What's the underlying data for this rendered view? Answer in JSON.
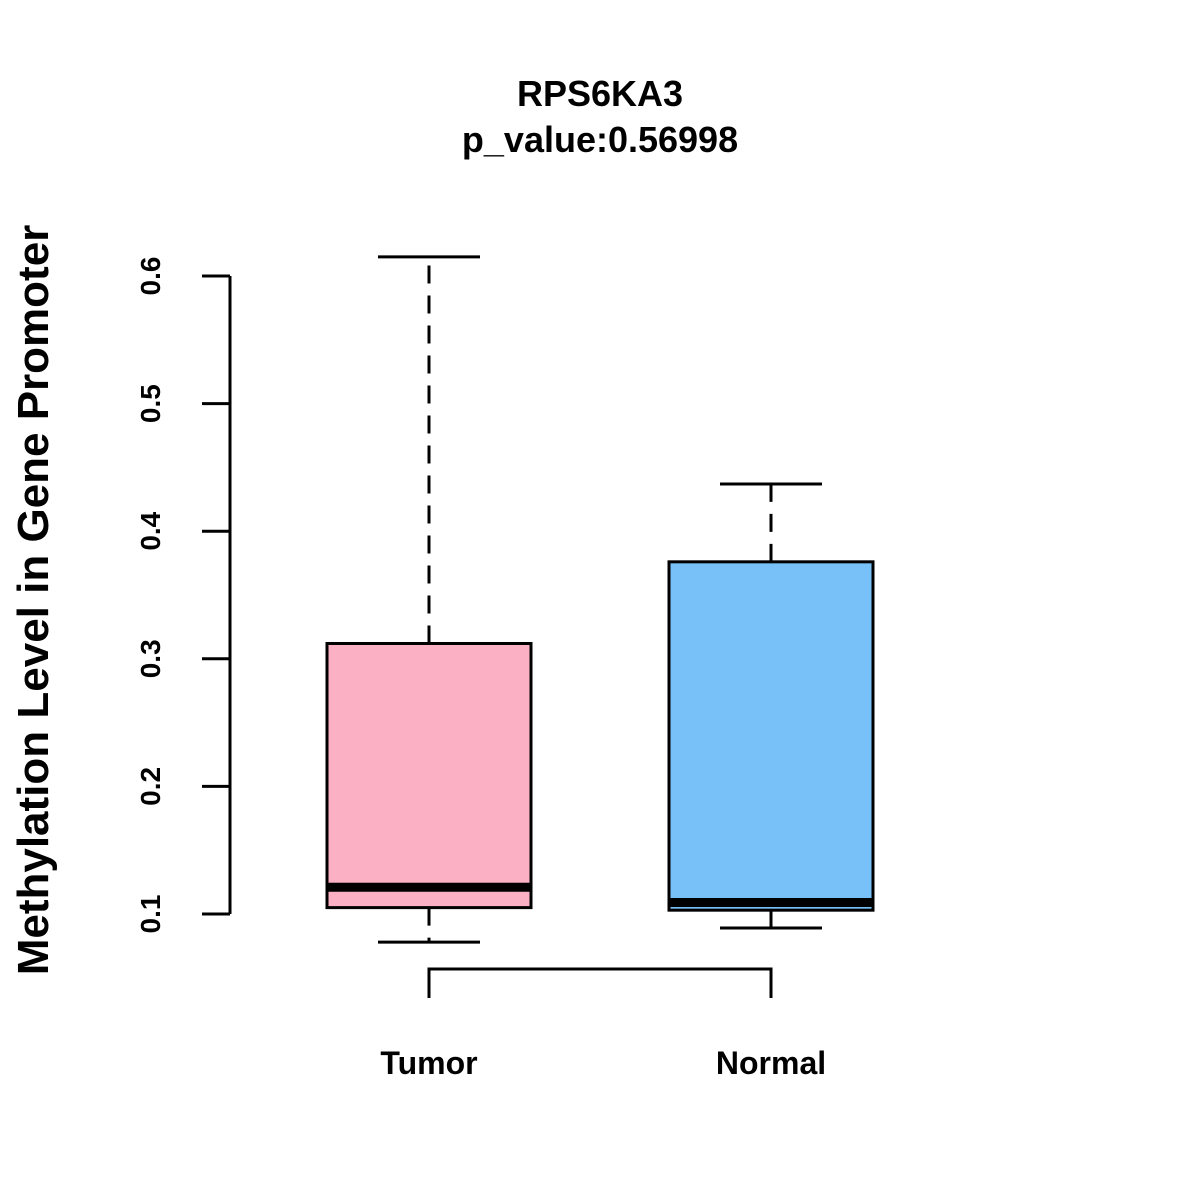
{
  "chart_data": {
    "type": "boxplot",
    "title": "RPS6KA3",
    "subtitle": "p_value:0.56998",
    "ylabel": "Methylation Level in Gene Promoter",
    "xlabel": "",
    "ylim": [
      0.1,
      0.6
    ],
    "yticks": [
      "0.1",
      "0.2",
      "0.3",
      "0.4",
      "0.5",
      "0.6"
    ],
    "categories": [
      "Tumor",
      "Normal"
    ],
    "groups": [
      {
        "name": "Tumor",
        "color": "#FBB1C3",
        "min": 0.078,
        "q1": 0.105,
        "median": 0.121,
        "q3": 0.312,
        "max": 0.615
      },
      {
        "name": "Normal",
        "color": "#77C0F8",
        "min": 0.089,
        "q1": 0.103,
        "median": 0.109,
        "q3": 0.376,
        "max": 0.437
      }
    ],
    "comparison_bracket": true,
    "grid": false
  }
}
